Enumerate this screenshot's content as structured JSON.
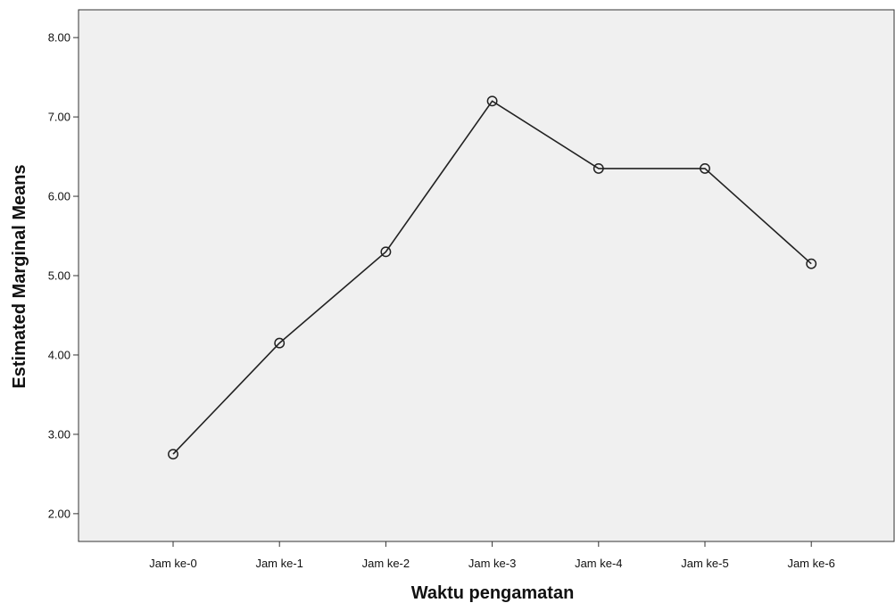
{
  "chart_data": {
    "type": "line",
    "title": "",
    "xlabel": "Waktu pengamatan",
    "ylabel": "Estimated Marginal Means",
    "categories": [
      "Jam ke-0",
      "Jam ke-1",
      "Jam ke-2",
      "Jam ke-3",
      "Jam ke-4",
      "Jam ke-5",
      "Jam ke-6"
    ],
    "series": [
      {
        "values": [
          2.75,
          4.15,
          5.3,
          7.2,
          6.35,
          6.35,
          5.15
        ]
      }
    ],
    "ylim": [
      1.65,
      8.35
    ],
    "yticks": [
      "2.00",
      "3.00",
      "4.00",
      "5.00",
      "6.00",
      "7.00",
      "8.00"
    ],
    "grid": false,
    "legend": "none",
    "marker": "open-circle",
    "colors": {
      "plot_background": "#f0f0f0",
      "line": "#222222",
      "axis": "#333333"
    }
  }
}
